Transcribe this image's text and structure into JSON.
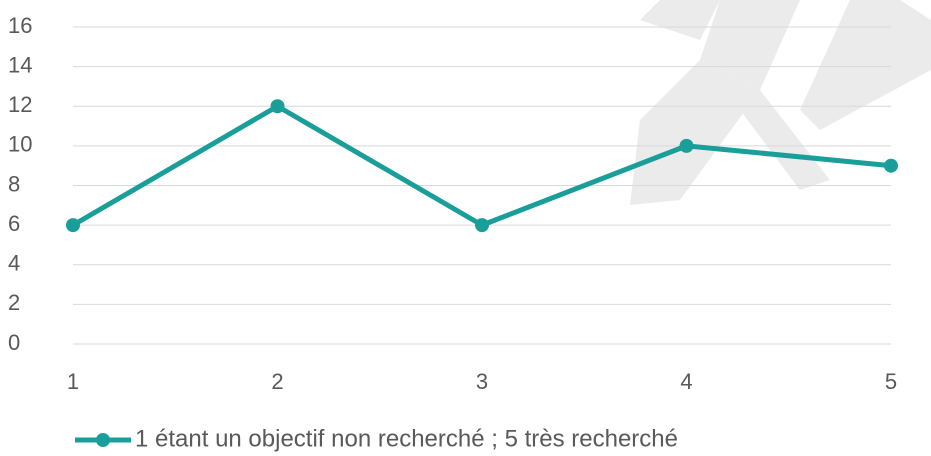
{
  "chart_data": {
    "type": "line",
    "x": [
      1,
      2,
      3,
      4,
      5
    ],
    "xlim": [
      1,
      5
    ],
    "xticks": [
      1,
      2,
      3,
      4,
      5
    ],
    "ylim": [
      0,
      16
    ],
    "yticks": [
      0,
      2,
      4,
      6,
      8,
      10,
      12,
      14,
      16
    ],
    "grid": true,
    "legend": "bottom",
    "series": [
      {
        "name": "1 étant un objectif non recherché ; 5 très recherché",
        "color": "#1a9e9a",
        "values": [
          6,
          12,
          6,
          10,
          9
        ]
      }
    ]
  }
}
